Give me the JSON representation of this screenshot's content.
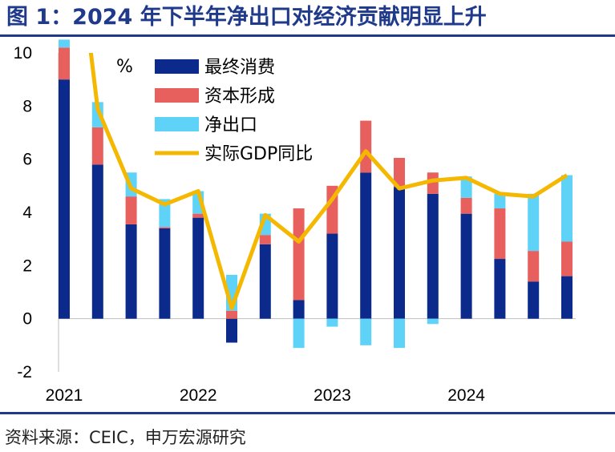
{
  "title": "图 1：2024 年下半年净出口对经济贡献明显上升",
  "source": "资料来源：CEIC，申万宏源研究",
  "chart_data": {
    "type": "bar",
    "stacked": true,
    "unit_label": "%",
    "categories": [
      "2021Q1",
      "2021Q2",
      "2021Q3",
      "2021Q4",
      "2022Q1",
      "2022Q2",
      "2022Q3",
      "2022Q4",
      "2023Q1",
      "2023Q2",
      "2023Q3",
      "2023Q4",
      "2024Q1",
      "2024Q2",
      "2024Q3",
      "2024Q4"
    ],
    "x_tick_labels": [
      "2021",
      "2022",
      "2023",
      "2024"
    ],
    "ylim": [
      -2,
      10
    ],
    "y_ticks": [
      -2,
      0,
      2,
      4,
      6,
      8,
      10
    ],
    "series": [
      {
        "name": "最终消费",
        "kind": "bar",
        "color": "#0b2a8c",
        "values": [
          9.0,
          5.8,
          3.55,
          3.4,
          3.8,
          -0.9,
          2.8,
          0.7,
          3.2,
          5.5,
          4.95,
          4.7,
          3.95,
          2.25,
          1.4,
          1.6
        ]
      },
      {
        "name": "资本形成",
        "kind": "bar",
        "color": "#e8605e",
        "values": [
          1.2,
          1.4,
          1.05,
          0.05,
          0.15,
          0.3,
          0.35,
          3.45,
          1.8,
          1.95,
          1.1,
          0.8,
          0.6,
          1.9,
          1.15,
          1.3
        ]
      },
      {
        "name": "净出口",
        "kind": "bar",
        "color": "#5fd3f7",
        "values": [
          0.3,
          0.95,
          0.9,
          1.05,
          0.85,
          1.35,
          0.8,
          -1.1,
          -0.3,
          -1.0,
          -1.1,
          -0.2,
          0.8,
          0.55,
          2.15,
          2.5
        ]
      },
      {
        "name": "实际GDP同比",
        "kind": "line",
        "color": "#f5b800",
        "values": [
          18.3,
          7.9,
          4.9,
          4.3,
          4.8,
          0.4,
          3.9,
          2.9,
          4.5,
          6.3,
          4.9,
          5.2,
          5.3,
          4.7,
          4.6,
          5.4
        ]
      }
    ],
    "legend_position": "top-center"
  }
}
